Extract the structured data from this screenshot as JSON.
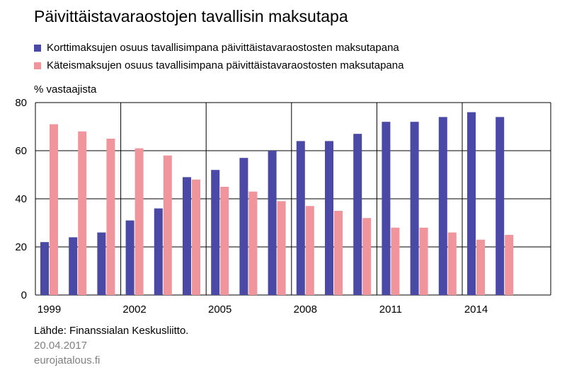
{
  "colors": {
    "card": "#4a4aa6",
    "cash": "#f0959b",
    "grid": "#000000"
  },
  "chart_data": {
    "type": "bar",
    "title": "Päivittäistavaraostojen tavallisin maksutapa",
    "ylabel": "% vastaajista",
    "xlabel": "",
    "ylim": [
      0,
      80
    ],
    "yticks": [
      0,
      20,
      40,
      60,
      80
    ],
    "x": [
      1999,
      2000,
      2001,
      2002,
      2003,
      2004,
      2005,
      2006,
      2007,
      2008,
      2009,
      2010,
      2011,
      2012,
      2013,
      2014,
      2015
    ],
    "xtick_labels": [
      "1999",
      "2002",
      "2005",
      "2008",
      "2011",
      "2014"
    ],
    "grid": true,
    "legend_position": "top-left",
    "series": [
      {
        "name": "Korttimaksujen osuus tavallisimpana päivittäistavaraostosten maksutapana",
        "values": [
          22,
          24,
          26,
          31,
          36,
          49,
          52,
          57,
          60,
          64,
          64,
          67,
          72,
          72,
          74,
          76,
          74
        ]
      },
      {
        "name": "Käteismaksujen osuus tavallisimpana päivittäistavaraostosten maksutapana",
        "values": [
          71,
          68,
          65,
          61,
          58,
          48,
          45,
          43,
          39,
          37,
          35,
          32,
          28,
          28,
          26,
          23,
          25
        ]
      }
    ]
  },
  "footer": {
    "source": "Lähde: Finanssialan Keskusliitto.",
    "date": "20.04.2017",
    "site": "eurojatalous.fi"
  }
}
